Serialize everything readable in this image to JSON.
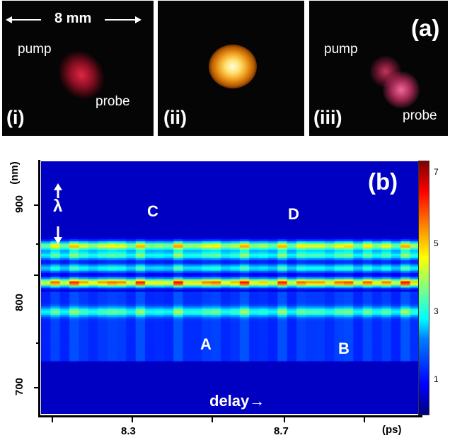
{
  "panel_a": {
    "label": "(a)",
    "scale_text": "8 mm",
    "images": [
      {
        "id": "i",
        "label": "(i)",
        "texts": [
          "pump",
          "probe"
        ]
      },
      {
        "id": "ii",
        "label": "(ii)",
        "texts": []
      },
      {
        "id": "iii",
        "label": "(iii)",
        "texts": [
          "pump",
          "probe"
        ]
      }
    ]
  },
  "panel_b": {
    "label": "(b)",
    "lambda_symbol": "λ",
    "region_labels": [
      "A",
      "B",
      "C",
      "D"
    ],
    "delay_text": "delay→"
  },
  "chart_data": {
    "type": "heatmap",
    "ylabel": "(nm)",
    "xlabel": "(ps)",
    "y_ticks": [
      "700",
      "800",
      "900"
    ],
    "x_ticks": [
      "8.3",
      "8.7"
    ],
    "ylim": [
      675,
      935
    ],
    "colorbar_ticks": [
      "1",
      "3",
      "5",
      "7"
    ],
    "colorbar_range": [
      0,
      7.5
    ],
    "colormap": "jet",
    "bands_nm": [
      {
        "center": 810,
        "intensity": 5.2
      },
      {
        "center": 848,
        "intensity": 4.2
      },
      {
        "center": 838,
        "intensity": 3.0
      },
      {
        "center": 825,
        "intensity": 2.6
      },
      {
        "center": 780,
        "intensity": 2.2
      }
    ]
  }
}
